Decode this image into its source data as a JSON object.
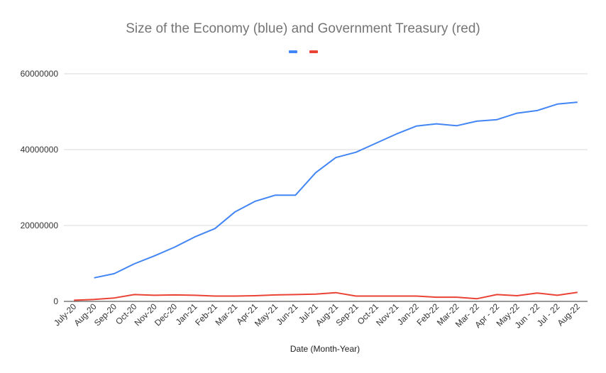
{
  "chart_data": {
    "type": "line",
    "title": "Size of the Economy (blue) and Government Treasury (red)",
    "xlabel": "Date (Month-Year)",
    "ylabel": "",
    "ylim": [
      0,
      60000000
    ],
    "yticks": [
      0,
      20000000,
      40000000,
      60000000
    ],
    "grid": true,
    "legend": "top",
    "categories": [
      "July-20",
      "Aug-20",
      "Sep-20",
      "Oct-20",
      "Nov-20",
      "Dec-20",
      "Jan-21",
      "Feb-21",
      "Mar-21",
      "Apr-21",
      "May-21",
      "Jun-21",
      "Jul-21",
      "Aug-21",
      "Sep-21",
      "Oct-21",
      "Nov-21",
      "Jan-22",
      "Feb-22",
      "Mar-22",
      "Mar- 22",
      "Apr - 22",
      "May-22",
      "Jun - 22",
      "Jul - 22",
      "Aug-22"
    ],
    "series": [
      {
        "name": "",
        "color": "#4285f4",
        "values": [
          null,
          6200000,
          7300000,
          9900000,
          12000000,
          14300000,
          17000000,
          19200000,
          23600000,
          26400000,
          28000000,
          28000000,
          33900000,
          37900000,
          39300000,
          41700000,
          44100000,
          46200000,
          46800000,
          46300000,
          47500000,
          47900000,
          49600000,
          50300000,
          52000000,
          52500000
        ]
      },
      {
        "name": "",
        "color": "#ea4335",
        "values": [
          300000,
          500000,
          900000,
          1800000,
          1600000,
          1700000,
          1600000,
          1400000,
          1400000,
          1500000,
          1700000,
          1800000,
          1900000,
          2300000,
          1400000,
          1400000,
          1400000,
          1400000,
          1100000,
          1100000,
          700000,
          1800000,
          1500000,
          2200000,
          1600000,
          2400000
        ]
      }
    ]
  }
}
